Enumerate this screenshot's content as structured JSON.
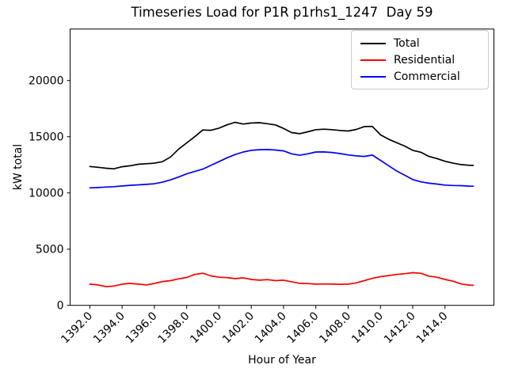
{
  "chart_data": {
    "type": "line",
    "title": "Timeseries Load for P1R p1rhs1_1247  Day 59",
    "xlabel": "Hour of Year",
    "ylabel": "kW total",
    "grid": false,
    "legend_position": "upper right",
    "xlim": [
      1390.78,
      1417.03
    ],
    "ylim": [
      0,
      24580
    ],
    "x_ticks": [
      "1392.0",
      "1394.0",
      "1396.0",
      "1398.0",
      "1400.0",
      "1402.0",
      "1404.0",
      "1406.0",
      "1408.0",
      "1410.0",
      "1412.0",
      "1414.0"
    ],
    "y_ticks": [
      "0",
      "5000",
      "10000",
      "15000",
      "20000"
    ],
    "x": [
      1392.0,
      1392.5,
      1393.0,
      1393.5,
      1394.0,
      1394.5,
      1395.0,
      1395.5,
      1396.0,
      1396.5,
      1397.0,
      1397.5,
      1398.0,
      1398.5,
      1399.0,
      1399.5,
      1400.0,
      1400.5,
      1401.0,
      1401.5,
      1402.0,
      1402.5,
      1403.0,
      1403.5,
      1404.0,
      1404.5,
      1405.0,
      1405.5,
      1406.0,
      1406.5,
      1407.0,
      1407.5,
      1408.0,
      1408.5,
      1409.0,
      1409.5,
      1410.0,
      1410.5,
      1411.0,
      1411.5,
      1412.0,
      1412.5,
      1413.0,
      1413.5,
      1414.0,
      1414.5,
      1415.0,
      1415.5,
      1415.75
    ],
    "series": [
      {
        "name": "Total",
        "color": "#000000",
        "values": [
          12350,
          12280,
          12200,
          12150,
          12330,
          12420,
          12550,
          12600,
          12650,
          12780,
          13200,
          13900,
          14450,
          15000,
          15600,
          15570,
          15760,
          16060,
          16280,
          16130,
          16220,
          16250,
          16160,
          16050,
          15740,
          15370,
          15270,
          15440,
          15630,
          15670,
          15630,
          15560,
          15510,
          15650,
          15900,
          15920,
          15180,
          14780,
          14470,
          14170,
          13790,
          13620,
          13250,
          13060,
          12820,
          12650,
          12520,
          12460,
          12450
        ]
      },
      {
        "name": "Residential",
        "color": "#ff0000",
        "values": [
          1890,
          1820,
          1660,
          1720,
          1890,
          1950,
          1890,
          1820,
          1950,
          2120,
          2200,
          2360,
          2480,
          2750,
          2860,
          2620,
          2500,
          2470,
          2370,
          2450,
          2300,
          2240,
          2290,
          2200,
          2240,
          2100,
          1960,
          1940,
          1890,
          1900,
          1890,
          1870,
          1890,
          2000,
          2200,
          2400,
          2550,
          2650,
          2750,
          2820,
          2900,
          2850,
          2600,
          2500,
          2300,
          2150,
          1900,
          1800,
          1780
        ]
      },
      {
        "name": "Commercial",
        "color": "#0000ff",
        "values": [
          10450,
          10480,
          10520,
          10560,
          10620,
          10680,
          10720,
          10760,
          10820,
          10960,
          11160,
          11420,
          11700,
          11910,
          12120,
          12450,
          12780,
          13130,
          13420,
          13640,
          13790,
          13850,
          13860,
          13820,
          13740,
          13480,
          13350,
          13480,
          13640,
          13650,
          13600,
          13500,
          13380,
          13300,
          13250,
          13370,
          12900,
          12430,
          11960,
          11580,
          11190,
          10990,
          10870,
          10790,
          10700,
          10660,
          10650,
          10610,
          10600
        ]
      }
    ]
  }
}
